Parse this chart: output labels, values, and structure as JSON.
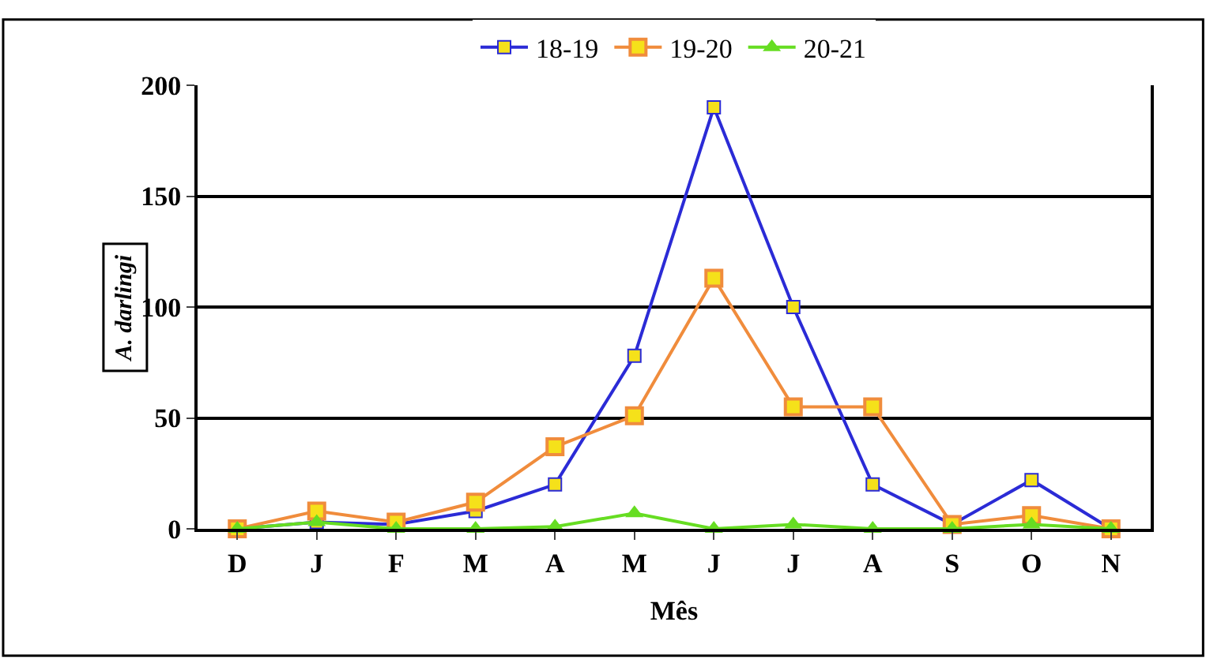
{
  "chart_data": {
    "type": "line",
    "xlabel": "Mês",
    "ylabel": "A. darlingi",
    "categories": [
      "D",
      "J",
      "F",
      "M",
      "A",
      "M",
      "J",
      "J",
      "A",
      "S",
      "O",
      "N"
    ],
    "series": [
      {
        "name": "18-19",
        "color": "#2b2bd6",
        "marker": "square",
        "values": [
          0,
          3,
          2,
          8,
          20,
          78,
          190,
          100,
          20,
          2,
          22,
          0
        ]
      },
      {
        "name": "19-20",
        "color": "#f08c3c",
        "marker": "square",
        "values": [
          0,
          8,
          3,
          12,
          37,
          51,
          113,
          55,
          55,
          2,
          6,
          0
        ]
      },
      {
        "name": "20-21",
        "color": "#66dd22",
        "marker": "triangle",
        "values": [
          0,
          3,
          0,
          0,
          1,
          7,
          0,
          2,
          0,
          0,
          2,
          0
        ]
      }
    ],
    "ylim": [
      0,
      200
    ],
    "yticks": [
      0,
      50,
      100,
      150,
      200
    ],
    "grid": "y",
    "legend": "top"
  }
}
